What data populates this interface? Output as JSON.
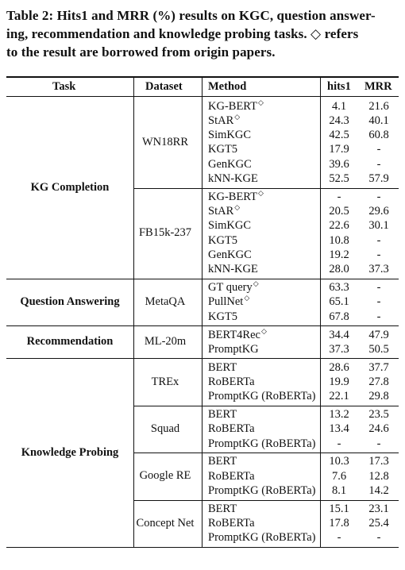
{
  "caption": {
    "line1": "Table 2: Hits1 and MRR (%) results on KGC, question answer-",
    "line2": "ing, recommendation and knowledge probing tasks. ◇ refers",
    "line3": "to the result are borrowed from origin papers."
  },
  "headers": {
    "task": "Task",
    "dataset": "Dataset",
    "method": "Method",
    "hits1": "hits1",
    "mrr": "MRR"
  },
  "groups": [
    {
      "task": "KG Completion",
      "datasets": [
        {
          "name": "WN18RR",
          "rows": [
            {
              "method": "KG-BERT",
              "marker": "◇",
              "hits1": "4.1",
              "mrr": "21.6"
            },
            {
              "method": "StAR",
              "marker": "◇",
              "hits1": "24.3",
              "mrr": "40.1"
            },
            {
              "method": "SimKGC",
              "marker": "",
              "hits1": "42.5",
              "mrr": "60.8"
            },
            {
              "method": "KGT5",
              "marker": "",
              "hits1": "17.9",
              "mrr": "-"
            },
            {
              "method": "GenKGC",
              "marker": "",
              "hits1": "39.6",
              "mrr": "-"
            },
            {
              "method": "kNN-KGE",
              "marker": "",
              "hits1": "52.5",
              "mrr": "57.9"
            }
          ]
        },
        {
          "name": "FB15k-237",
          "rows": [
            {
              "method": "KG-BERT",
              "marker": "◇",
              "hits1": "-",
              "mrr": "-"
            },
            {
              "method": "StAR",
              "marker": "◇",
              "hits1": "20.5",
              "mrr": "29.6"
            },
            {
              "method": "SimKGC",
              "marker": "",
              "hits1": "22.6",
              "mrr": "30.1"
            },
            {
              "method": "KGT5",
              "marker": "",
              "hits1": "10.8",
              "mrr": "-"
            },
            {
              "method": "GenKGC",
              "marker": "",
              "hits1": "19.2",
              "mrr": "-"
            },
            {
              "method": "kNN-KGE",
              "marker": "",
              "hits1": "28.0",
              "mrr": "37.3"
            }
          ]
        }
      ]
    },
    {
      "task": "Question Answering",
      "datasets": [
        {
          "name": "MetaQA",
          "rows": [
            {
              "method": "GT query",
              "marker": "◇",
              "hits1": "63.3",
              "mrr": "-"
            },
            {
              "method": "PullNet",
              "marker": "◇",
              "hits1": "65.1",
              "mrr": "-"
            },
            {
              "method": "KGT5",
              "marker": "",
              "hits1": "67.8",
              "mrr": "-"
            }
          ]
        }
      ]
    },
    {
      "task": "Recommendation",
      "datasets": [
        {
          "name": "ML-20m",
          "rows": [
            {
              "method": "BERT4Rec",
              "marker": "◇",
              "hits1": "34.4",
              "mrr": "47.9"
            },
            {
              "method": "PromptKG",
              "marker": "",
              "hits1": "37.3",
              "mrr": "50.5"
            }
          ]
        }
      ]
    },
    {
      "task": "Knowledge Probing",
      "datasets": [
        {
          "name": "TREx",
          "rows": [
            {
              "method": "BERT",
              "marker": "",
              "hits1": "28.6",
              "mrr": "37.7"
            },
            {
              "method": "RoBERTa",
              "marker": "",
              "hits1": "19.9",
              "mrr": "27.8"
            },
            {
              "method": "PromptKG (RoBERTa)",
              "marker": "",
              "hits1": "22.1",
              "mrr": "29.8"
            }
          ]
        },
        {
          "name": "Squad",
          "rows": [
            {
              "method": "BERT",
              "marker": "",
              "hits1": "13.2",
              "mrr": "23.5"
            },
            {
              "method": "RoBERTa",
              "marker": "",
              "hits1": "13.4",
              "mrr": "24.6"
            },
            {
              "method": "PromptKG (RoBERTa)",
              "marker": "",
              "hits1": "-",
              "mrr": "-"
            }
          ]
        },
        {
          "name": "Google RE",
          "rows": [
            {
              "method": "BERT",
              "marker": "",
              "hits1": "10.3",
              "mrr": "17.3"
            },
            {
              "method": "RoBERTa",
              "marker": "",
              "hits1": "7.6",
              "mrr": "12.8"
            },
            {
              "method": "PromptKG (RoBERTa)",
              "marker": "",
              "hits1": "8.1",
              "mrr": "14.2"
            }
          ]
        },
        {
          "name": "Concept Net",
          "rows": [
            {
              "method": "BERT",
              "marker": "",
              "hits1": "15.1",
              "mrr": "23.1"
            },
            {
              "method": "RoBERTa",
              "marker": "",
              "hits1": "17.8",
              "mrr": "25.4"
            },
            {
              "method": "PromptKG (RoBERTa)",
              "marker": "",
              "hits1": "-",
              "mrr": "-"
            }
          ]
        }
      ]
    }
  ]
}
